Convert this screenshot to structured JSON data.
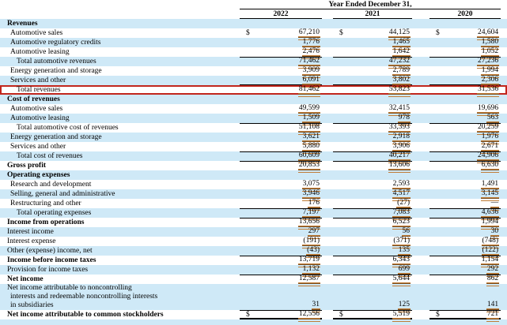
{
  "header": {
    "period_label": "Year Ended December 31,",
    "years": [
      "2022",
      "2021",
      "2020"
    ]
  },
  "table": {
    "currency_symbol": "$",
    "rows": [
      {
        "label": "Revenues",
        "bold": true,
        "indent": 0,
        "shade": true,
        "values": null
      },
      {
        "label": "Automotive sales",
        "indent": 1,
        "shade": false,
        "dollar": true,
        "values": [
          "67,210",
          "44,125",
          "24,604"
        ]
      },
      {
        "label": "Automotive regulatory credits",
        "indent": 1,
        "shade": true,
        "values": [
          "1,776",
          "1,465",
          "1,580"
        ]
      },
      {
        "label": "Automotive leasing",
        "indent": 1,
        "shade": false,
        "values": [
          "2,476",
          "1,642",
          "1,052"
        ]
      },
      {
        "label": "Total automotive revenues",
        "indent": 2,
        "shade": true,
        "sumAbove": true,
        "values": [
          "71,462",
          "47,232",
          "27,236"
        ]
      },
      {
        "label": "Energy generation and storage",
        "indent": 1,
        "shade": false,
        "values": [
          "3,909",
          "2,789",
          "1,994"
        ]
      },
      {
        "label": "Services and other",
        "indent": 1,
        "shade": true,
        "sumBelow": true,
        "values": [
          "6,091",
          "3,802",
          "2,306"
        ]
      },
      {
        "label": "Total revenues",
        "indent": 2,
        "shade": false,
        "highlight": true,
        "values": [
          "81,462",
          "53,823",
          "31,536"
        ]
      },
      {
        "label": "Cost of revenues",
        "bold": true,
        "indent": 0,
        "shade": true,
        "values": null
      },
      {
        "label": "Automotive sales",
        "indent": 1,
        "shade": false,
        "values": [
          "49,599",
          "32,415",
          "19,696"
        ]
      },
      {
        "label": "Automotive leasing",
        "indent": 1,
        "shade": true,
        "values": [
          "1,509",
          "978",
          "563"
        ]
      },
      {
        "label": "Total automotive cost of revenues",
        "indent": 2,
        "shade": false,
        "sumAbove": true,
        "values": [
          "51,108",
          "33,393",
          "20,259"
        ]
      },
      {
        "label": "Energy generation and storage",
        "indent": 1,
        "shade": true,
        "values": [
          "3,621",
          "2,918",
          "1,976"
        ]
      },
      {
        "label": "Services and other",
        "indent": 1,
        "shade": false,
        "values": [
          "5,880",
          "3,906",
          "2,671"
        ]
      },
      {
        "label": "Total cost of revenues",
        "indent": 2,
        "shade": true,
        "sumAbove": true,
        "values": [
          "60,609",
          "40,217",
          "24,906"
        ]
      },
      {
        "label": "Gross profit",
        "bold": true,
        "indent": 0,
        "shade": false,
        "sumAbove": true,
        "values": [
          "20,853",
          "13,606",
          "6,630"
        ]
      },
      {
        "label": "Operating expenses",
        "bold": true,
        "indent": 0,
        "shade": true,
        "values": null
      },
      {
        "label": "Research and development",
        "indent": 1,
        "shade": false,
        "values": [
          "3,075",
          "2,593",
          "1,491"
        ]
      },
      {
        "label": "Selling, general and administrative",
        "indent": 1,
        "shade": true,
        "values": [
          "3,946",
          "4,517",
          "3,145"
        ]
      },
      {
        "label": "Restructuring and other",
        "indent": 1,
        "shade": false,
        "values": [
          "176",
          "(27)",
          "—"
        ]
      },
      {
        "label": "Total operating expenses",
        "indent": 2,
        "shade": true,
        "sumAbove": true,
        "values": [
          "7,197",
          "7,083",
          "4,636"
        ]
      },
      {
        "label": "Income from operations",
        "bold": true,
        "indent": 0,
        "shade": false,
        "sumAbove": true,
        "values": [
          "13,656",
          "6,523",
          "1,994"
        ]
      },
      {
        "label": "Interest income",
        "indent": 0,
        "shade": true,
        "values": [
          "297",
          "56",
          "30"
        ]
      },
      {
        "label": "Interest expense",
        "indent": 0,
        "shade": false,
        "values": [
          "(191)",
          "(371)",
          "(748)"
        ]
      },
      {
        "label": "Other (expense) income, net",
        "indent": 0,
        "shade": true,
        "values": [
          "(43)",
          "135",
          "(122)"
        ]
      },
      {
        "label": "Income before income taxes",
        "bold": true,
        "indent": 0,
        "shade": false,
        "sumAbove": true,
        "values": [
          "13,719",
          "6,343",
          "1,154"
        ]
      },
      {
        "label": "Provision for income taxes",
        "indent": 0,
        "shade": true,
        "values": [
          "1,132",
          "699",
          "292"
        ]
      },
      {
        "label": "Net income",
        "bold": true,
        "indent": 0,
        "shade": false,
        "sumAbove": true,
        "values": [
          "12,587",
          "5,644",
          "862"
        ]
      },
      {
        "label_lines": [
          "Net income attributable to noncontrolling",
          "interests and redeemable noncontrolling interests",
          "in subsidiaries"
        ],
        "indent": 0,
        "shade": true,
        "values": [
          "31",
          "125",
          "141"
        ]
      },
      {
        "label": "Net income attributable to common stockholders",
        "bold": true,
        "indent": 0,
        "shade": false,
        "dollar": true,
        "sumAbove": true,
        "finalRule": true,
        "values": [
          "12,556",
          "5,519",
          "721"
        ]
      },
      {
        "label": "",
        "shade": true,
        "values": null,
        "filler": true
      }
    ]
  },
  "annotation": {
    "highlighted_row": "Total revenues",
    "box_color": "#c1261c"
  },
  "colors": {
    "row_shade": "#cfe9f7",
    "tag_underline": "#c07c36",
    "rule": "#000000"
  }
}
